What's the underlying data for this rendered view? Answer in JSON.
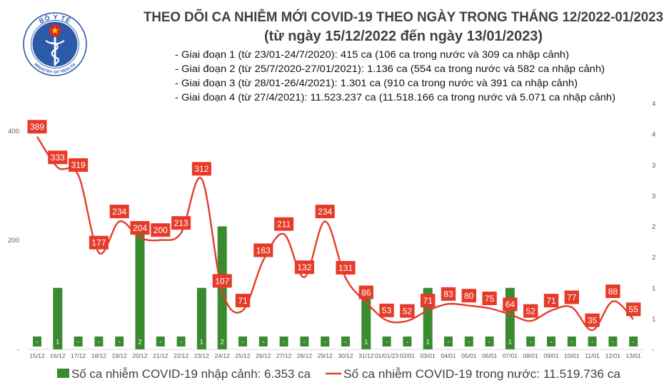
{
  "logo": {
    "icon": "ministry-of-health-emblem",
    "top_text": "BỘ Y TẾ",
    "bottom_text": "MINISTRY OF HEALTH",
    "colors": {
      "blue": "#2b5aa8",
      "red": "#d7262b",
      "star": "#ffd200",
      "white": "#ffffff"
    }
  },
  "chart_data": {
    "type": "bar",
    "title": "THEO DÕI CA NHIỄM MỚI COVID-19 THEO NGÀY TRONG THÁNG 12/2022-01/2023",
    "subtitle": "(từ ngày 15/12/2022 đến ngày 13/01/2023)",
    "annotations": [
      "- Giai đoạn 1 (từ 23/01-24/7/2020): 415 ca (106 ca trong nước và 309 ca nhập cảnh)",
      "- Giai đoạn 2 (từ 25/7/2020-27/01/2021): 1.136 ca (554 ca trong nước và 582 ca nhập cảnh)",
      "- Giai đoạn 3 (từ 28/01-26/4/2021): 1.301 ca (910 ca trong nước và 391 ca nhập cảnh)",
      "- Giai đoạn 4 (từ 27/4/2021): 11.523.237 ca (11.518.166 ca trong nước và 5.071 ca nhập cảnh)"
    ],
    "categories": [
      "15/12",
      "16/12",
      "17/12",
      "18/12",
      "19/12",
      "20/12",
      "21/12",
      "22/12",
      "23/12",
      "24/12",
      "25/12",
      "26/12",
      "27/12",
      "28/12",
      "29/12",
      "30/12",
      "31/12",
      "01/01/23",
      "02/01",
      "03/01",
      "04/01",
      "05/01",
      "06/01",
      "07/01",
      "08/01",
      "09/01",
      "10/01",
      "11/01",
      "12/01",
      "13/01"
    ],
    "series": [
      {
        "name": "Số ca nhiễm COVID-19 nhập cảnh: 6.353 ca",
        "type": "bar",
        "axis": "right",
        "color": "#3a8a30",
        "values": [
          0,
          1,
          0,
          0,
          0,
          2,
          0,
          0,
          1,
          2,
          0,
          0,
          0,
          0,
          0,
          0,
          1,
          0,
          0,
          1,
          0,
          0,
          0,
          1,
          0,
          0,
          0,
          0,
          0,
          0
        ]
      },
      {
        "name": "Số ca nhiễm COVID-19 trong nước: 11.519.736 ca",
        "type": "line",
        "axis": "left",
        "color": "#e63b2a",
        "values": [
          389,
          333,
          319,
          177,
          234,
          204,
          200,
          213,
          312,
          107,
          71,
          163,
          211,
          132,
          234,
          131,
          86,
          53,
          52,
          71,
          83,
          80,
          75,
          64,
          52,
          71,
          77,
          35,
          88,
          55
        ]
      }
    ],
    "yaxis": {
      "side": "left",
      "lim": [
        0,
        450
      ],
      "ticks": [
        0,
        200,
        400
      ],
      "tick_labels": [
        "-",
        "200",
        "400"
      ]
    },
    "y2axis": {
      "side": "right",
      "lim": [
        0,
        4
      ],
      "ticks": [
        0,
        0.5,
        1,
        1.5,
        2,
        2.5,
        3,
        3.5,
        4
      ],
      "tick_labels": [
        "-",
        "1",
        "1",
        "2",
        "2",
        "3",
        "3",
        "4",
        "4"
      ]
    },
    "grid": false,
    "data_labels": true,
    "legend": "bottom"
  }
}
